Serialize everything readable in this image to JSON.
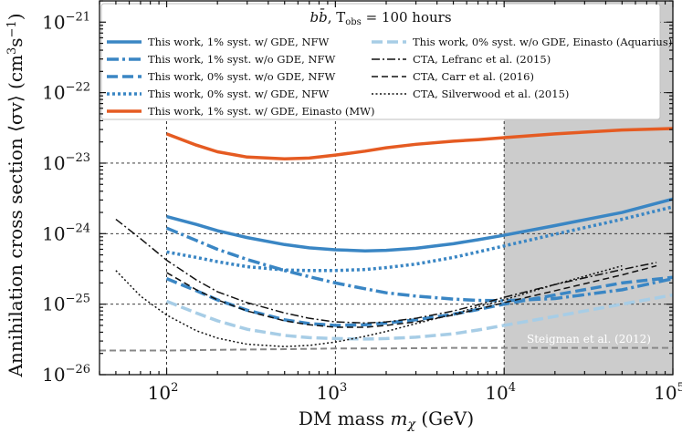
{
  "chart_data": {
    "type": "line",
    "title": "b b̄, T_obs = 100 hours",
    "title_parts": {
      "channel": "b",
      "channel_bar": "b̄",
      "rest": ", T",
      "sub": "obs",
      "eq": " = 100 hours"
    },
    "xlabel": "DM mass mχ (GeV)",
    "xlabel_parts": {
      "pre": "DM mass ",
      "var": "m",
      "sub": "χ",
      "post": " (GeV)"
    },
    "ylabel": "Annihilation cross section ⟨σv⟩ (cm³s⁻¹)",
    "ylabel_parts": {
      "pre": "Annihilation cross section ⟨σv⟩ (cm",
      "s1": "3",
      "mid": "s",
      "s2": "−1",
      "post": ")"
    },
    "x_scale": "log",
    "y_scale": "log",
    "xlim": [
      40,
      100000
    ],
    "ylim": [
      1e-26,
      2e-21
    ],
    "x_ticks": [
      {
        "value": 100,
        "base": "10",
        "exp": "2"
      },
      {
        "value": 1000,
        "base": "10",
        "exp": "3"
      },
      {
        "value": 10000,
        "base": "10",
        "exp": "4"
      },
      {
        "value": 100000,
        "base": "10",
        "exp": "5"
      }
    ],
    "y_ticks": [
      {
        "value": 1e-26,
        "base": "10",
        "exp": "−26"
      },
      {
        "value": 1e-25,
        "base": "10",
        "exp": "−25"
      },
      {
        "value": 1e-24,
        "base": "10",
        "exp": "−24"
      },
      {
        "value": 1e-23,
        "base": "10",
        "exp": "−23"
      },
      {
        "value": 1e-22,
        "base": "10",
        "exp": "−22"
      },
      {
        "value": 1e-21,
        "base": "10",
        "exp": "−21"
      }
    ],
    "grid": "dashed at decades",
    "shaded_region": {
      "x_from": 10000,
      "x_to": 100000,
      "color": "#cccccc"
    },
    "annotation": {
      "text": "Steigman et al. (2012)",
      "position": "lower-right"
    },
    "legend_position": "top",
    "series": [
      {
        "name": "This work, 1% syst. w/ GDE, NFW",
        "color": "#3a86c4",
        "style": "solid",
        "width": 3.5,
        "x": [
          100,
          150,
          200,
          300,
          500,
          700,
          1000,
          1500,
          2000,
          3000,
          5000,
          7000,
          10000,
          20000,
          50000,
          100000
        ],
        "y": [
          1.75e-24,
          1.35e-24,
          1.1e-24,
          8.8e-25,
          7e-25,
          6.3e-25,
          5.9e-25,
          5.7e-25,
          5.8e-25,
          6.2e-25,
          7.2e-25,
          8.2e-25,
          9.5e-25,
          1.3e-24,
          2e-24,
          3.1e-24
        ]
      },
      {
        "name": "This work, 1% syst. w/o GDE, NFW",
        "color": "#3a86c4",
        "style": "dashdot",
        "width": 3.5,
        "x": [
          100,
          150,
          200,
          300,
          500,
          700,
          1000,
          1500,
          2000,
          3000,
          5000,
          7000,
          10000,
          20000,
          50000,
          100000
        ],
        "y": [
          1.2e-24,
          8e-25,
          6e-25,
          4.3e-25,
          3e-25,
          2.45e-25,
          2e-25,
          1.65e-25,
          1.45e-25,
          1.3e-25,
          1.18e-25,
          1.13e-25,
          1.12e-25,
          1.2e-25,
          1.6e-25,
          2.3e-25
        ]
      },
      {
        "name": "This work, 0% syst. w/o GDE, NFW",
        "color": "#3a86c4",
        "style": "dashed",
        "width": 3.5,
        "x": [
          100,
          150,
          200,
          300,
          500,
          700,
          1000,
          1500,
          2000,
          3000,
          5000,
          7000,
          10000,
          20000,
          50000,
          100000
        ],
        "y": [
          2.3e-25,
          1.55e-25,
          1.15e-25,
          8.2e-26,
          6e-26,
          5.3e-26,
          5e-26,
          5.1e-26,
          5.4e-26,
          6e-26,
          7.2e-26,
          8.4e-26,
          1e-25,
          1.35e-25,
          2e-25,
          2.4e-25
        ]
      },
      {
        "name": "This work, 0% syst. w/ GDE, NFW",
        "color": "#3a86c4",
        "style": "dotted",
        "width": 3.5,
        "x": [
          100,
          150,
          200,
          300,
          500,
          700,
          1000,
          1500,
          2000,
          3000,
          5000,
          7000,
          10000,
          20000,
          50000,
          100000
        ],
        "y": [
          5.5e-25,
          4.6e-25,
          4e-25,
          3.4e-25,
          3.05e-25,
          3e-25,
          3e-25,
          3.1e-25,
          3.3e-25,
          3.7e-25,
          4.6e-25,
          5.5e-25,
          6.7e-25,
          9.8e-25,
          1.6e-24,
          2.4e-24
        ]
      },
      {
        "name": "This work, 1% syst. w/ GDE, Einasto (MW)",
        "color": "#e55b22",
        "style": "solid",
        "width": 3.5,
        "x": [
          100,
          150,
          200,
          300,
          500,
          700,
          1000,
          1500,
          2000,
          3000,
          5000,
          7000,
          10000,
          20000,
          50000,
          100000
        ],
        "y": [
          2.6e-23,
          1.8e-23,
          1.45e-23,
          1.22e-23,
          1.15e-23,
          1.18e-23,
          1.3e-23,
          1.48e-23,
          1.65e-23,
          1.85e-23,
          2.05e-23,
          2.15e-23,
          2.3e-23,
          2.6e-23,
          2.95e-23,
          3.1e-23
        ]
      },
      {
        "name": "This work, 0% syst. w/o GDE, Einasto (Aquarius)",
        "color": "#a7cde6",
        "style": "dashed",
        "width": 3.5,
        "x": [
          100,
          150,
          200,
          300,
          500,
          700,
          1000,
          1500,
          2000,
          3000,
          5000,
          7000,
          10000,
          20000,
          50000,
          100000
        ],
        "y": [
          1.1e-25,
          7.5e-26,
          5.8e-26,
          4.4e-26,
          3.6e-26,
          3.35e-26,
          3.25e-26,
          3.2e-26,
          3.25e-26,
          3.4e-26,
          3.8e-26,
          4.3e-26,
          5e-26,
          6.7e-26,
          1e-25,
          1.35e-25
        ]
      },
      {
        "name": "CTA, Lefranc et al. (2015)",
        "color": "#111111",
        "style": "dashdot",
        "width": 1.5,
        "x": [
          50,
          70,
          100,
          150,
          200,
          300,
          500,
          700,
          1000,
          1500,
          2000,
          3000,
          5000,
          7000,
          10000,
          20000,
          50000,
          80000
        ],
        "y": [
          1.6e-24,
          8.5e-25,
          4.2e-25,
          2.2e-25,
          1.5e-25,
          1.05e-25,
          7.5e-26,
          6.3e-26,
          5.6e-26,
          5.4e-26,
          5.6e-26,
          6.3e-26,
          8e-26,
          9.8e-26,
          1.25e-25,
          1.9e-25,
          3.1e-25,
          3.9e-25
        ]
      },
      {
        "name": "CTA, Carr et al. (2016)",
        "color": "#111111",
        "style": "dashed",
        "width": 1.5,
        "x": [
          100,
          150,
          200,
          300,
          500,
          700,
          1000,
          1500,
          2000,
          3000,
          5000,
          7000,
          10000,
          20000,
          50000,
          80000
        ],
        "y": [
          2.8e-25,
          1.6e-25,
          1.15e-25,
          8e-26,
          5.8e-26,
          5.1e-26,
          4.7e-26,
          4.7e-26,
          5e-26,
          5.6e-26,
          7e-26,
          8.5e-26,
          1.05e-25,
          1.55e-25,
          2.6e-25,
          3.5e-25
        ]
      },
      {
        "name": "CTA, Silverwood et al. (2015)",
        "color": "#111111",
        "style": "dotted",
        "width": 1.5,
        "x": [
          50,
          70,
          100,
          150,
          200,
          300,
          500,
          700,
          1000,
          1500,
          2000,
          3000,
          5000,
          7000,
          10000,
          20000,
          50000
        ],
        "y": [
          3e-25,
          1.3e-25,
          7e-26,
          4.2e-26,
          3.3e-26,
          2.7e-26,
          2.5e-26,
          2.6e-26,
          2.9e-26,
          3.5e-26,
          4.1e-26,
          5.3e-26,
          7.2e-26,
          9.2e-26,
          1.15e-25,
          1.9e-25,
          3.5e-25
        ]
      },
      {
        "name": "Steigman et al. (2012)",
        "color": "#888888",
        "style": "dashed",
        "width": 2,
        "in_legend": false,
        "x": [
          40,
          100,
          200,
          500,
          1000,
          2000,
          5000,
          10000,
          20000,
          50000,
          100000
        ],
        "y": [
          2.2e-26,
          2.2e-26,
          2.25e-26,
          2.3e-26,
          2.35e-26,
          2.35e-26,
          2.4e-26,
          2.4e-26,
          2.4e-26,
          2.4e-26,
          2.4e-26
        ]
      }
    ]
  }
}
